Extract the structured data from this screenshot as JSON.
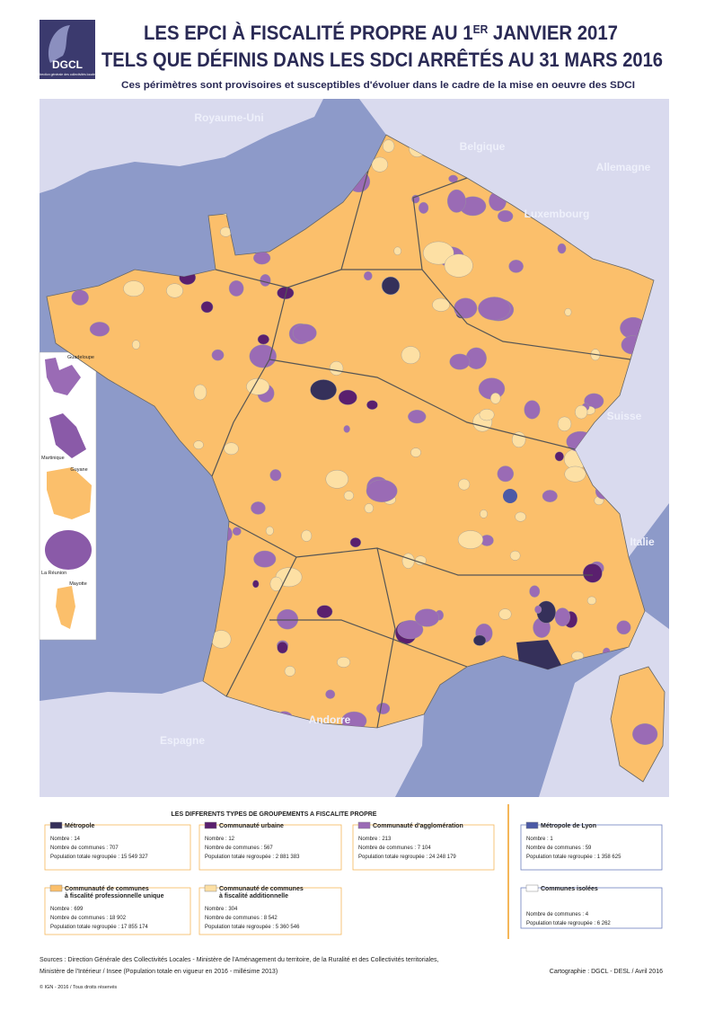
{
  "header": {
    "logo": "DGCL",
    "logo_subtitle": "direction générale des collectivités locales",
    "title_a": "LES EPCI À FISCALITÉ PROPRE AU 1",
    "title_sup": "ER",
    "title_b": " JANVIER 2017",
    "title_line2": "TELS QUE DÉFINIS DANS LES SDCI ARRÊTÉS AU 31 MARS 2016",
    "subtitle": "Ces périmètres sont provisoires et susceptibles d'évoluer dans le cadre de la mise en oeuvre des SDCI"
  },
  "map": {
    "countries": [
      "Royaume-Uni",
      "Belgique",
      "Allemagne",
      "Luxembourg",
      "Suisse",
      "Italie",
      "Andorre",
      "Espagne"
    ],
    "insets": [
      "Guadeloupe",
      "Martinique",
      "Guyane",
      "La Réunion",
      "Mayotte"
    ]
  },
  "legend": {
    "title": "LES DIFFERENTS TYPES DE GROUPEMENTS A FISCALITE PROPRE",
    "items": [
      {
        "name": [
          "Métropole"
        ],
        "color": "#35305a",
        "lines": [
          "Nombre : 14",
          "Nombre de communes : 707",
          "Population totale regroupée : 15 549 327"
        ]
      },
      {
        "name": [
          "Communauté urbaine"
        ],
        "color": "#5a1f6e",
        "lines": [
          "Nombre : 12",
          "Nombre de communes : 567",
          "Population totale regroupée : 2 881 383"
        ]
      },
      {
        "name": [
          "Communauté d'agglomération"
        ],
        "color": "#9a6bb5",
        "lines": [
          "Nombre : 213",
          "Nombre de communes : 7 104",
          "Population totale regroupée : 24 248 179"
        ]
      },
      {
        "name": [
          "Métropole de Lyon"
        ],
        "color": "#4c5aa6",
        "lines": [
          "Nombre : 1",
          "Nombre de communes : 59",
          "Population totale regroupée : 1 358 625"
        ]
      },
      {
        "name": [
          "Communauté de communes",
          "à fiscalité professionnelle unique"
        ],
        "color": "#fbbf6b",
        "lines": [
          "Nombre : 699",
          "Nombre de communes : 18 902",
          "Population totale regroupée : 17 855 174"
        ]
      },
      {
        "name": [
          "Communauté de communes",
          "à fiscalité additionnelle"
        ],
        "color": "#fde0a4",
        "lines": [
          "Nombre : 304",
          "Nombre de communes : 8 542",
          "Population totale regroupée : 5 360 546"
        ]
      },
      {
        "name": [
          "Communes isolées"
        ],
        "color": "#ffffff",
        "lines": [
          "Nombre de communes : 4",
          "Population totale regroupée : 6 262"
        ]
      }
    ]
  },
  "footer": {
    "sources": [
      "Sources :  Direction Générale des Collectivités Locales - Ministère de l'Aménagement du territoire, de la Ruralité et des Collectivités territoriales,",
      "Ministère de l'Intérieur / Insee (Population totale en vigueur en 2016 - millésime 2013)"
    ],
    "copyright": "© IGN - 2016 / Tous droits réservés",
    "credit": "Cartographie : DGCL - DESL / Avril 2016"
  }
}
